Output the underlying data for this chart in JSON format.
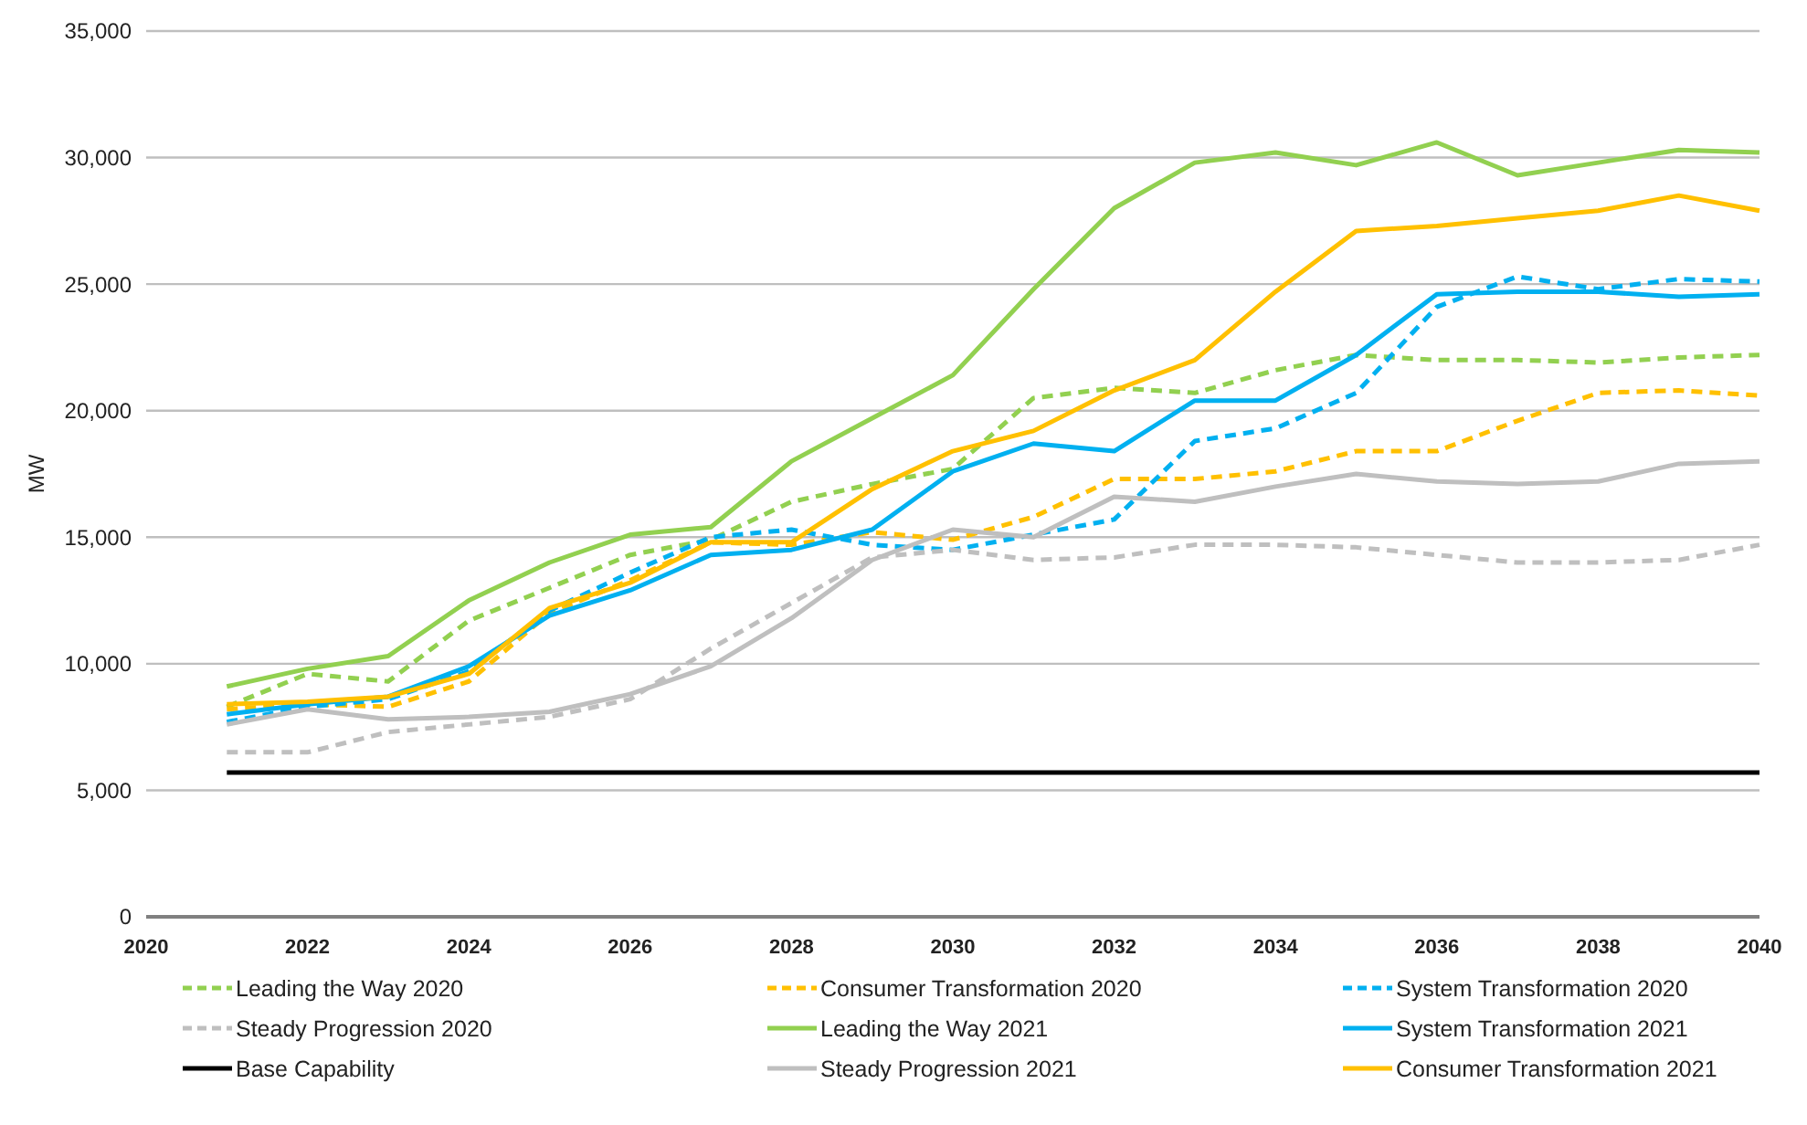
{
  "chart_data": {
    "type": "line",
    "ylabel": "MW",
    "x": [
      2021,
      2022,
      2023,
      2024,
      2025,
      2026,
      2027,
      2028,
      2029,
      2030,
      2031,
      2032,
      2033,
      2034,
      2035,
      2036,
      2037,
      2038,
      2039,
      2040
    ],
    "xlim": [
      2020,
      2040
    ],
    "xticks": [
      2020,
      2022,
      2024,
      2026,
      2028,
      2030,
      2032,
      2034,
      2036,
      2038,
      2040
    ],
    "ylim": [
      0,
      35000
    ],
    "yticks": [
      {
        "value": 0,
        "label": "0"
      },
      {
        "value": 5000,
        "label": "5,000"
      },
      {
        "value": 10000,
        "label": "10,000"
      },
      {
        "value": 15000,
        "label": "15,000"
      },
      {
        "value": 20000,
        "label": "20,000"
      },
      {
        "value": 25000,
        "label": "25,000"
      },
      {
        "value": 30000,
        "label": "30,000"
      },
      {
        "value": 35000,
        "label": "35,000"
      }
    ],
    "grid": "y",
    "legend": "bottom",
    "marker": "none",
    "series": [
      {
        "name": "Leading the Way 2020",
        "color": "#92d050",
        "line_style": "dashed",
        "values": [
          8300,
          9600,
          9300,
          11700,
          13000,
          14300,
          14900,
          16400,
          17100,
          17700,
          20500,
          20900,
          20700,
          21600,
          22200,
          22000,
          22000,
          21900,
          22100,
          22200
        ]
      },
      {
        "name": "Consumer Transformation 2020",
        "color": "#ffc000",
        "line_style": "dashed",
        "values": [
          8200,
          8400,
          8300,
          9300,
          12000,
          13300,
          14800,
          14700,
          15200,
          14900,
          15800,
          17300,
          17300,
          17600,
          18400,
          18400,
          19600,
          20700,
          20800,
          20600
        ]
      },
      {
        "name": "System Transformation 2020",
        "color": "#00b0f0",
        "line_style": "dashed",
        "values": [
          7700,
          8300,
          8600,
          9700,
          12100,
          13600,
          15000,
          15300,
          14700,
          14500,
          15100,
          15700,
          18800,
          19300,
          20700,
          24100,
          25300,
          24800,
          25200,
          25100
        ]
      },
      {
        "name": "Steady Progression 2020",
        "color": "#bfbfbf",
        "line_style": "dashed",
        "values": [
          6500,
          6500,
          7300,
          7600,
          7900,
          8600,
          10600,
          12400,
          14200,
          14500,
          14100,
          14200,
          14700,
          14700,
          14600,
          14300,
          14000,
          14000,
          14100,
          14700
        ]
      },
      {
        "name": "Leading the Way 2021",
        "color": "#92d050",
        "line_style": "solid",
        "values": [
          9100,
          9800,
          10300,
          12500,
          14000,
          15100,
          15400,
          18000,
          19700,
          21400,
          24800,
          28000,
          29800,
          30200,
          29700,
          30600,
          29300,
          29800,
          30300,
          30200
        ]
      },
      {
        "name": "System Transformation 2021",
        "color": "#00b0f0",
        "line_style": "solid",
        "values": [
          8000,
          8400,
          8700,
          9900,
          11900,
          12900,
          14300,
          14500,
          15300,
          17600,
          18700,
          18400,
          20400,
          20400,
          22200,
          24600,
          24700,
          24700,
          24500,
          24600
        ]
      },
      {
        "name": "Base Capability",
        "color": "#000000",
        "line_style": "solid",
        "values": [
          5700,
          5700,
          5700,
          5700,
          5700,
          5700,
          5700,
          5700,
          5700,
          5700,
          5700,
          5700,
          5700,
          5700,
          5700,
          5700,
          5700,
          5700,
          5700,
          5700
        ]
      },
      {
        "name": "Steady Progression 2021",
        "color": "#bfbfbf",
        "line_style": "solid",
        "values": [
          7600,
          8200,
          7800,
          7900,
          8100,
          8800,
          9900,
          11800,
          14100,
          15300,
          15000,
          16600,
          16400,
          17000,
          17500,
          17200,
          17100,
          17200,
          17900,
          18000
        ]
      },
      {
        "name": "Consumer Transformation 2021",
        "color": "#ffc000",
        "line_style": "solid",
        "values": [
          8400,
          8500,
          8700,
          9600,
          12200,
          13200,
          14800,
          14800,
          16900,
          18400,
          19200,
          20800,
          22000,
          24700,
          27100,
          27300,
          27600,
          27900,
          28500,
          27900
        ]
      }
    ]
  }
}
